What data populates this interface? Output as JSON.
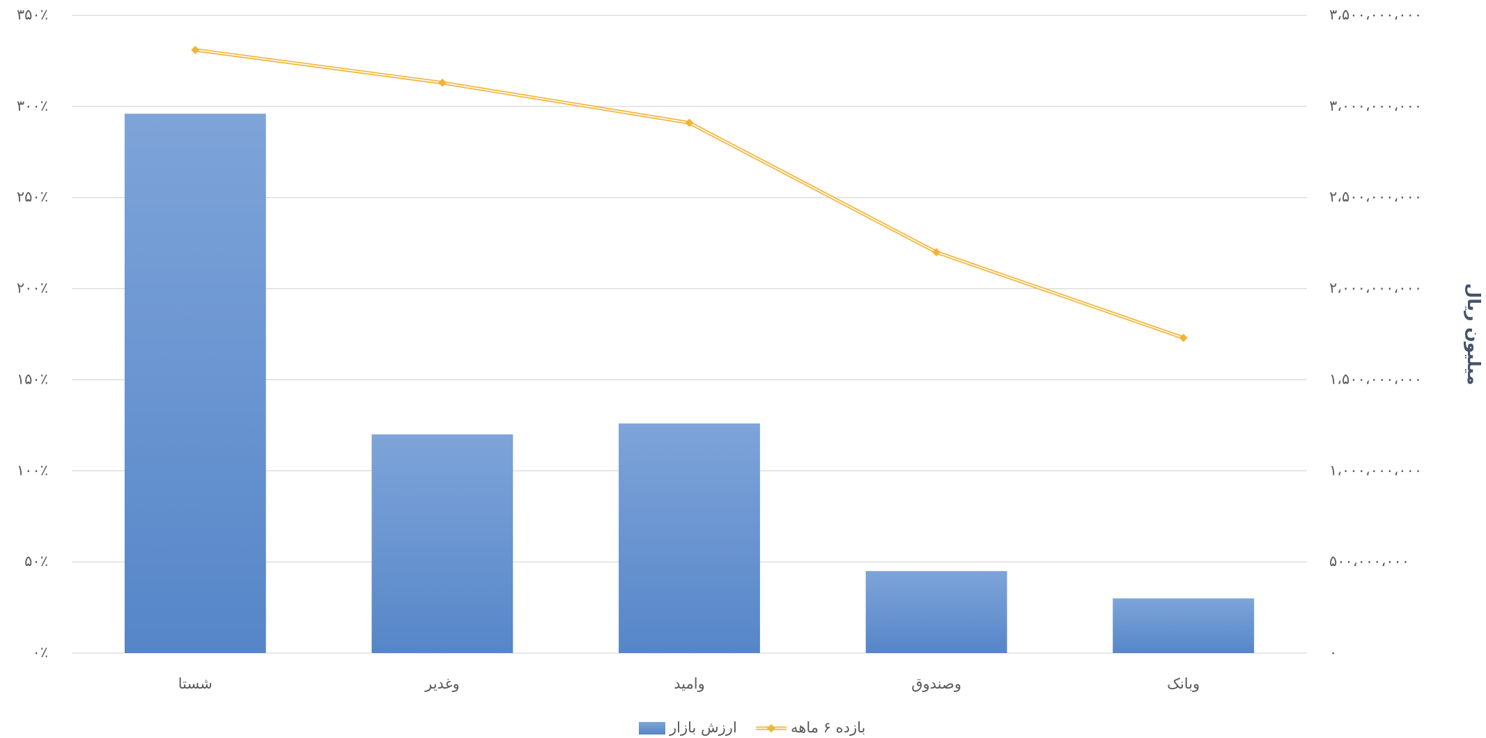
{
  "chart_data": {
    "type": "bar",
    "categories": [
      "شستا",
      "وغدیر",
      "وامید",
      "وصندوق",
      "وبانک"
    ],
    "series": [
      {
        "name": "ارزش بازار",
        "type": "bar",
        "axis": "y2",
        "color": "#5f8fd0",
        "values": [
          2960000000,
          1200000000,
          1260000000,
          450000000,
          300000000
        ]
      },
      {
        "name": "بازده ۶ ماهه",
        "type": "line",
        "axis": "y",
        "color": "#f5b335",
        "values": [
          331,
          313,
          291,
          220,
          173
        ]
      }
    ],
    "ylim": [
      0,
      350
    ],
    "yticks": [
      {
        "value": 0,
        "label": "۰٪"
      },
      {
        "value": 50,
        "label": "۵۰٪"
      },
      {
        "value": 100,
        "label": "۱۰۰٪"
      },
      {
        "value": 150,
        "label": "۱۵۰٪"
      },
      {
        "value": 200,
        "label": "۲۰۰٪"
      },
      {
        "value": 250,
        "label": "۲۵۰٪"
      },
      {
        "value": 300,
        "label": "۳۰۰٪"
      },
      {
        "value": 350,
        "label": "۳۵۰٪"
      }
    ],
    "y2lim": [
      0,
      3500000000
    ],
    "y2ticks": [
      {
        "value": 0,
        "label": "۰"
      },
      {
        "value": 500000000,
        "label": "۵۰۰،۰۰۰،۰۰۰"
      },
      {
        "value": 1000000000,
        "label": "۱،۰۰۰،۰۰۰،۰۰۰"
      },
      {
        "value": 1500000000,
        "label": "۱،۵۰۰،۰۰۰،۰۰۰"
      },
      {
        "value": 2000000000,
        "label": "۲،۰۰۰،۰۰۰،۰۰۰"
      },
      {
        "value": 2500000000,
        "label": "۲،۵۰۰،۰۰۰،۰۰۰"
      },
      {
        "value": 3000000000,
        "label": "۳،۰۰۰،۰۰۰،۰۰۰"
      },
      {
        "value": 3500000000,
        "label": "۳،۵۰۰،۰۰۰،۰۰۰"
      }
    ],
    "y2label": "میلیون ریال",
    "grid": true
  }
}
